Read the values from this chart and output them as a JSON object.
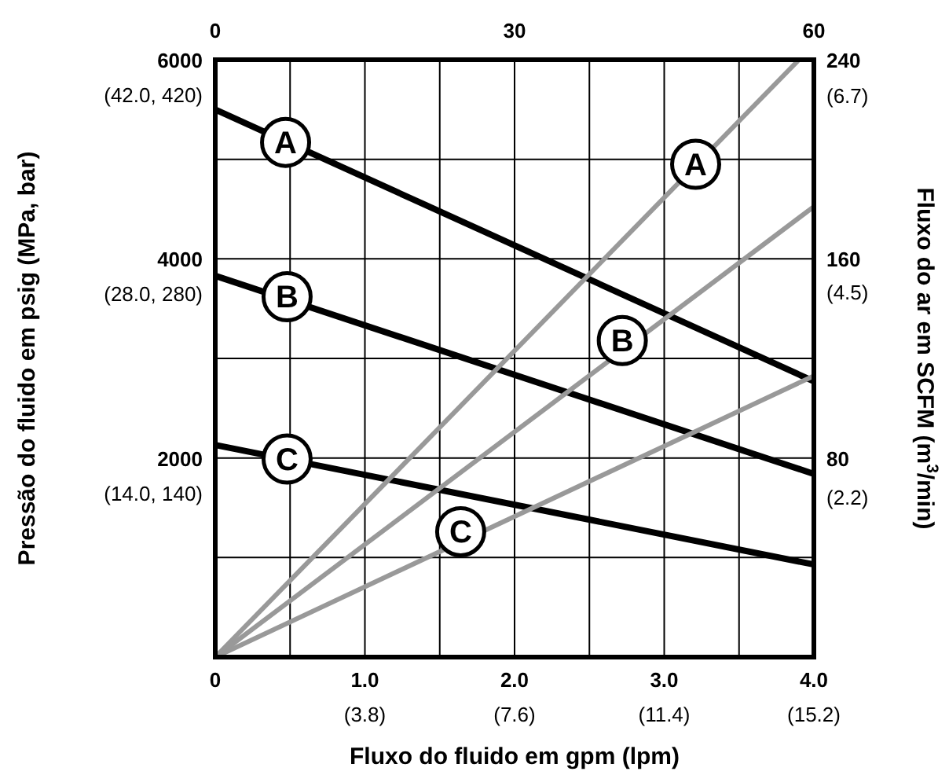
{
  "chart_data": {
    "type": "line",
    "xlabel": "Fluxo do fluido em gpm (lpm)",
    "ylabel": "Pressão do fluido em psig (MPa, bar)",
    "y2label": "Fluxo do ar em SCFM (m$^{3}$/min)",
    "xlim": [
      0,
      4
    ],
    "xticks": [
      {
        "value": 0,
        "label": "0"
      },
      {
        "value": 0.5,
        "label": null
      },
      {
        "value": 1,
        "label": "1.0"
      },
      {
        "value": 1.5,
        "label": null
      },
      {
        "value": 2,
        "label": "2.0"
      },
      {
        "value": 2.5,
        "label": null
      },
      {
        "value": 3,
        "label": "3.0"
      },
      {
        "value": 3.5,
        "label": null
      },
      {
        "value": 4,
        "label": "4.0"
      }
    ],
    "x2lim": [
      0,
      60
    ],
    "x2ticks": [
      0,
      30,
      60
    ],
    "ylim": [
      0,
      6000
    ],
    "yticks": [
      {
        "value": 0,
        "label": null
      },
      {
        "value": 1000,
        "label": null
      },
      2000,
      {
        "value": 3000,
        "label": null
      },
      4000,
      {
        "value": 5000,
        "label": null
      },
      6000
    ],
    "y2lim": [
      0,
      240
    ],
    "y2ticks": [
      80,
      160,
      240
    ],
    "grid": true,
    "marker": "none",
    "line_style": "solid",
    "series": [
      {
        "color": "#000000",
        "x": [
          0,
          4
        ],
        "values": [
          5500,
          2770
        ]
      },
      {
        "color": "#000000",
        "x": [
          0,
          4
        ],
        "values": [
          3830,
          1840
        ]
      },
      {
        "color": "#000000",
        "x": [
          0,
          4
        ],
        "values": [
          2130,
          930
        ]
      },
      {
        "color": "#999999",
        "axis": "y2",
        "x": [
          0,
          3.9
        ],
        "values": [
          0,
          240
        ]
      },
      {
        "color": "#999999",
        "axis": "y2",
        "x": [
          0,
          4
        ],
        "values": [
          0,
          181
        ]
      },
      {
        "color": "#999999",
        "axis": "y2",
        "x": [
          0,
          4
        ],
        "values": [
          0,
          113
        ]
      }
    ],
    "annotations": [
      {
        "text": "A",
        "x": 0.47,
        "y": 5170
      },
      {
        "text": "A",
        "x": 3.21,
        "y": 4950
      },
      {
        "text": "B",
        "x": 0.48,
        "y": 3620
      },
      {
        "text": "B",
        "x": 2.72,
        "y": 3180
      },
      {
        "text": "C",
        "x": 0.48,
        "y": 1990
      },
      {
        "text": "C",
        "x": 1.64,
        "y": 1260
      },
      "(3.8)",
      "(7.6)",
      "(11.4)",
      "(15.2)",
      "(14.0, 140)",
      "(28.0, 280)",
      "(42.0, 420)"
    ],
    "y3lim": [
      0.4,
      7.1
    ],
    "y3ticks": [
      {
        "value": 2.2,
        "label": "(2.2)"
      },
      {
        "value": 4.5,
        "label": "(4.5)"
      },
      {
        "value": 6.7,
        "label": "(6.7)"
      }
    ]
  }
}
